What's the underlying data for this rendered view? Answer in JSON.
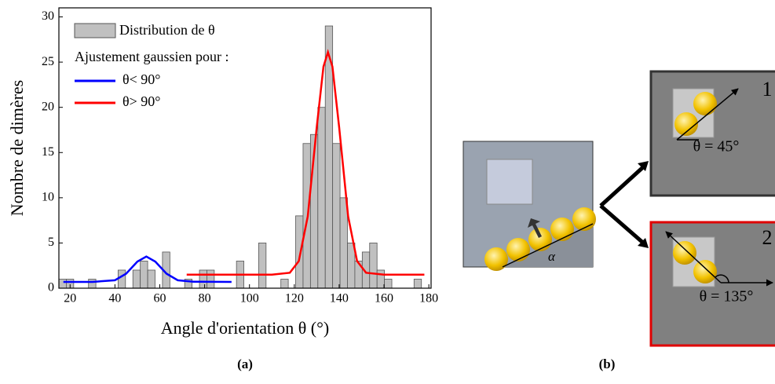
{
  "chart_data": {
    "type": "histogram",
    "xlabel": "Angle d'orientation θ (°)",
    "ylabel": "Nombre de dimères",
    "bins": [
      15,
      18.3,
      21.6,
      24.9,
      28.2,
      31.5,
      34.8,
      38.1,
      41.4,
      44.7,
      48,
      51.3,
      54.6,
      57.9,
      61.2,
      64.5,
      67.8,
      71.1,
      74.4,
      77.7,
      81,
      84.3,
      87.6,
      90.9,
      94.2,
      97.5,
      100.8,
      104.1,
      107.4,
      110.7,
      114,
      117.3,
      120.6,
      123.9,
      127.2,
      130.5,
      133.8,
      137.1,
      140.4,
      143.7,
      147,
      150.3,
      153.6,
      156.9,
      160.2,
      163.5,
      166.8,
      170.1,
      173.4,
      176.7,
      180
    ],
    "counts": [
      1,
      1,
      0,
      0,
      1,
      0,
      0,
      0,
      2,
      0,
      2,
      3,
      2,
      0,
      4,
      0,
      0,
      1,
      0,
      2,
      2,
      0,
      0,
      0,
      3,
      0,
      0,
      5,
      0,
      0,
      1,
      0,
      8,
      16,
      17,
      20,
      29,
      16,
      10,
      5,
      3,
      4,
      5,
      2,
      1,
      0,
      0,
      0,
      1,
      0
    ],
    "hist_name": "Distribution de θ",
    "hist_color": "#c0c0c0",
    "fit_title": "Ajustement gaussien pour :",
    "series": [
      {
        "name": "θ< 90°",
        "color": "#0000ff",
        "x": [
          17,
          30,
          40,
          45,
          50,
          54,
          58,
          63,
          68,
          75,
          92
        ],
        "values": [
          0.7,
          0.7,
          0.88,
          1.61,
          2.94,
          3.5,
          2.94,
          1.61,
          0.88,
          0.72,
          0.7
        ]
      },
      {
        "name": "θ> 90°",
        "color": "#ff0000",
        "x": [
          72,
          110,
          118,
          122,
          126,
          130,
          133,
          135,
          137,
          140,
          144,
          148,
          152,
          160,
          178
        ],
        "values": [
          1.5,
          1.5,
          1.71,
          3.0,
          7.95,
          17.8,
          24.5,
          26.1,
          24.5,
          17.8,
          7.95,
          3.0,
          1.71,
          1.5,
          1.5
        ]
      }
    ],
    "xlim": [
      15,
      181
    ],
    "ylim": [
      0,
      31
    ],
    "xticks": [
      20,
      40,
      60,
      80,
      100,
      120,
      140,
      160,
      180
    ],
    "yticks": [
      0,
      5,
      10,
      15,
      20,
      25,
      30
    ]
  },
  "panel_labels": [
    "(a)",
    "(b)"
  ],
  "diagram": {
    "angle_label": "α",
    "box1": {
      "number": "1",
      "angle": "θ = 45°"
    },
    "box2": {
      "number": "2",
      "angle": "θ = 135°"
    }
  }
}
